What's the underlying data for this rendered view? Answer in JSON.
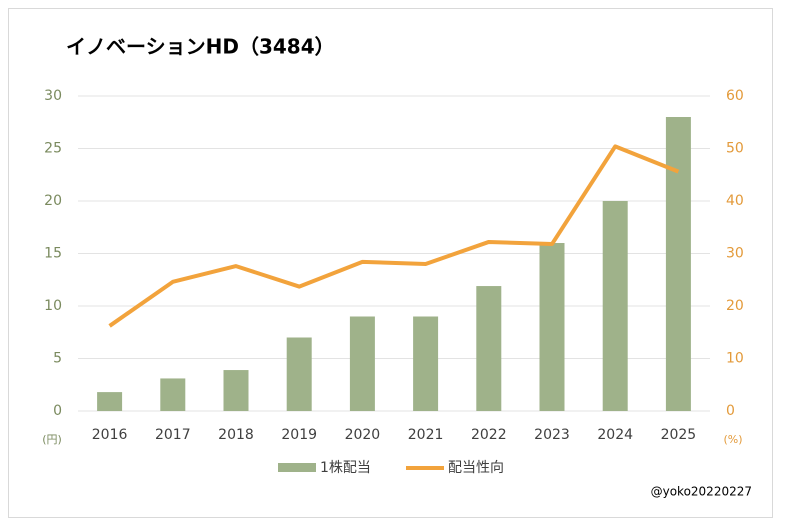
{
  "chart_data": {
    "type": "bar-line",
    "title": "イノベーションHD（3484）",
    "y_unit": "(円)",
    "y2_unit": "(%)",
    "annotation": "@yoko20220227",
    "categories": [
      "2016",
      "2017",
      "2018",
      "2019",
      "2020",
      "2021",
      "2022",
      "2023",
      "2024",
      "2025"
    ],
    "series": [
      {
        "name": "1株配当",
        "type": "bar",
        "color": "#9fb28a",
        "values": [
          1.8,
          3.1,
          3.9,
          7,
          9,
          9,
          11.9,
          16,
          20,
          28
        ]
      },
      {
        "name": "配当性向",
        "type": "line",
        "axis": "y2",
        "color": "#f2a33c",
        "values": [
          16.2,
          24.6,
          27.6,
          23.7,
          28.4,
          28.0,
          32.2,
          31.8,
          50.4,
          45.6
        ]
      }
    ],
    "ylim": [
      0,
      30
    ],
    "yticks": [
      0,
      5,
      10,
      15,
      20,
      25,
      30
    ],
    "y2lim": [
      0,
      60
    ],
    "y2ticks": [
      0,
      10,
      20,
      30,
      40,
      50,
      60
    ],
    "grid": true,
    "legend": "bottom"
  }
}
